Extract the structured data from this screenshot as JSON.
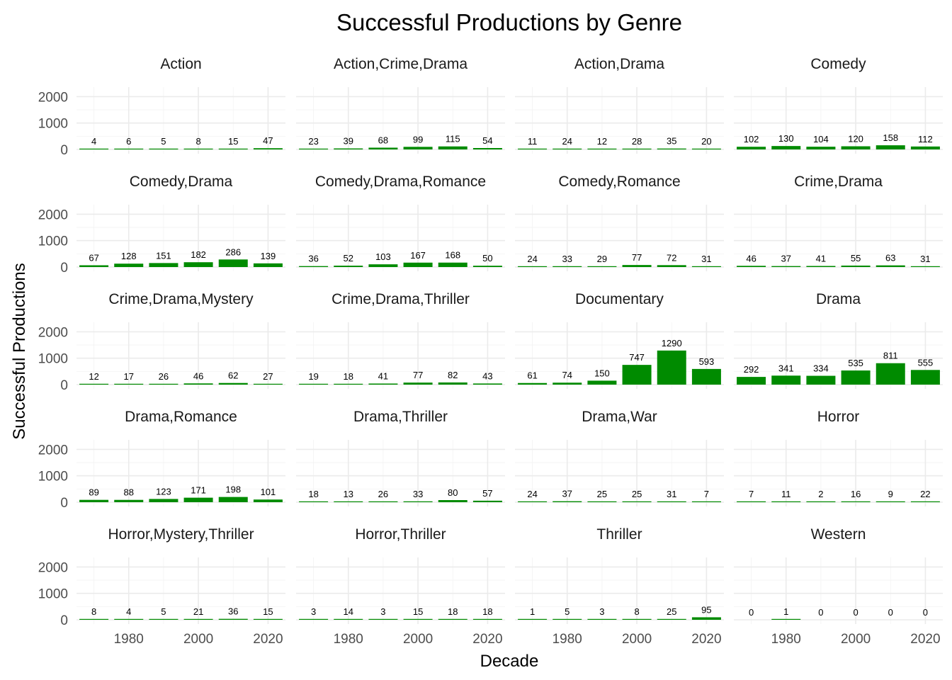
{
  "chart_data": {
    "type": "bar",
    "title": "Successful Productions by Genre",
    "xlabel": "Decade",
    "ylabel": "Successful Productions",
    "x": [
      1970,
      1980,
      1990,
      2000,
      2010,
      2020
    ],
    "x_tick_labels": [
      "1980",
      "2000",
      "2020"
    ],
    "x_tick_values": [
      1980,
      2000,
      2020
    ],
    "y_tick_labels": [
      "0",
      "1000",
      "2000"
    ],
    "y_tick_values": [
      0,
      1000,
      2000
    ],
    "ylim": [
      0,
      2500
    ],
    "bar_color": "#008B00",
    "panels": [
      {
        "genre": "Action",
        "values": [
          4,
          6,
          5,
          8,
          15,
          47
        ]
      },
      {
        "genre": "Action,Crime,Drama",
        "values": [
          23,
          39,
          68,
          99,
          115,
          54
        ]
      },
      {
        "genre": "Action,Drama",
        "values": [
          11,
          24,
          12,
          28,
          35,
          20
        ]
      },
      {
        "genre": "Comedy",
        "values": [
          102,
          130,
          104,
          120,
          158,
          112
        ]
      },
      {
        "genre": "Comedy,Drama",
        "values": [
          67,
          128,
          151,
          182,
          286,
          139
        ]
      },
      {
        "genre": "Comedy,Drama,Romance",
        "values": [
          36,
          52,
          103,
          167,
          168,
          50
        ]
      },
      {
        "genre": "Comedy,Romance",
        "values": [
          24,
          33,
          29,
          77,
          72,
          31
        ]
      },
      {
        "genre": "Crime,Drama",
        "values": [
          46,
          37,
          41,
          55,
          63,
          31
        ]
      },
      {
        "genre": "Crime,Drama,Mystery",
        "values": [
          12,
          17,
          26,
          46,
          62,
          27
        ]
      },
      {
        "genre": "Crime,Drama,Thriller",
        "values": [
          19,
          18,
          41,
          77,
          82,
          43
        ]
      },
      {
        "genre": "Documentary",
        "values": [
          61,
          74,
          150,
          747,
          1290,
          593
        ]
      },
      {
        "genre": "Drama",
        "values": [
          292,
          341,
          334,
          535,
          811,
          555
        ]
      },
      {
        "genre": "Drama,Romance",
        "values": [
          89,
          88,
          123,
          171,
          198,
          101
        ]
      },
      {
        "genre": "Drama,Thriller",
        "values": [
          18,
          13,
          26,
          33,
          80,
          57
        ]
      },
      {
        "genre": "Drama,War",
        "values": [
          24,
          37,
          25,
          25,
          31,
          7
        ]
      },
      {
        "genre": "Horror",
        "values": [
          7,
          11,
          2,
          16,
          9,
          22
        ]
      },
      {
        "genre": "Horror,Mystery,Thriller",
        "values": [
          8,
          4,
          5,
          21,
          36,
          15
        ]
      },
      {
        "genre": "Horror,Thriller",
        "values": [
          3,
          14,
          3,
          15,
          18,
          18
        ]
      },
      {
        "genre": "Thriller",
        "values": [
          1,
          5,
          3,
          8,
          25,
          95
        ]
      },
      {
        "genre": "Western",
        "values": [
          0,
          1,
          0,
          0,
          0,
          0
        ]
      }
    ]
  }
}
